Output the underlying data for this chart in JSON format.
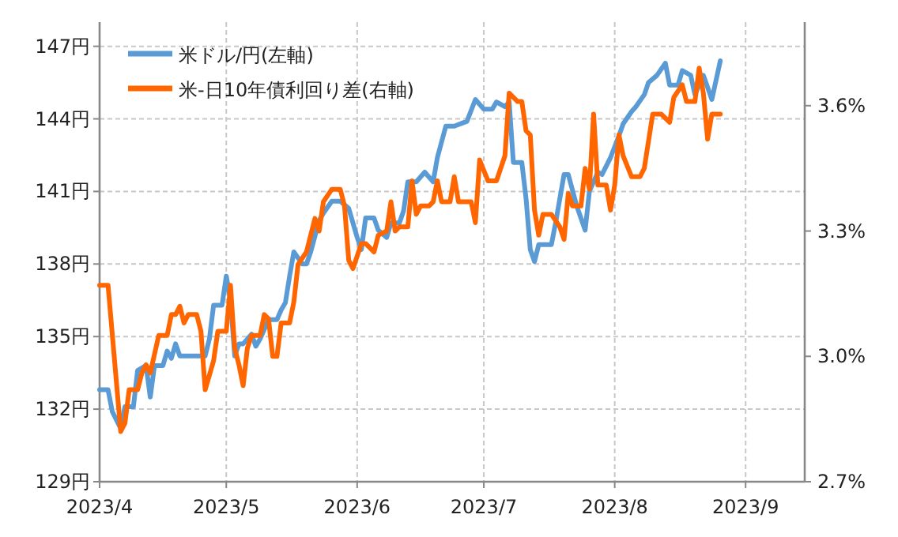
{
  "chart_data": {
    "type": "line",
    "legend": "top left",
    "grid": true,
    "xlim": [
      "2023-04-01",
      "2023-09-15"
    ],
    "xticks": [
      {
        "value": "2023-04-01",
        "label": "2023/4"
      },
      {
        "value": "2023-05-01",
        "label": "2023/5"
      },
      {
        "value": "2023-06-01",
        "label": "2023/6"
      },
      {
        "value": "2023-07-01",
        "label": "2023/7"
      },
      {
        "value": "2023-08-01",
        "label": "2023/8"
      },
      {
        "value": "2023-09-01",
        "label": "2023/9"
      }
    ],
    "ylim": [
      129,
      148
    ],
    "yticks": [
      {
        "value": 129,
        "label": "129円"
      },
      {
        "value": 132,
        "label": "132円"
      },
      {
        "value": 135,
        "label": "135円"
      },
      {
        "value": 138,
        "label": "138円"
      },
      {
        "value": 141,
        "label": "141円"
      },
      {
        "value": 144,
        "label": "144円"
      },
      {
        "value": 147,
        "label": "147円"
      }
    ],
    "y2lim": [
      2.7,
      3.8
    ],
    "y2ticks": [
      {
        "value": 2.7,
        "label": "2.7%"
      },
      {
        "value": 3.0,
        "label": "3.0%"
      },
      {
        "value": 3.3,
        "label": "3.3%"
      },
      {
        "value": 3.6,
        "label": "3.6%"
      }
    ],
    "series": [
      {
        "name": "米ドル/円(左軸)",
        "color": "#5b9bd5",
        "x": [
          "2023-04-01",
          "2023-04-03",
          "2023-04-04",
          "2023-04-06",
          "2023-04-07",
          "2023-04-09",
          "2023-04-10",
          "2023-04-12",
          "2023-04-13",
          "2023-04-14",
          "2023-04-16",
          "2023-04-17",
          "2023-04-18",
          "2023-04-19",
          "2023-04-20",
          "2023-04-22",
          "2023-04-26",
          "2023-04-27",
          "2023-04-28",
          "2023-04-30",
          "2023-05-01",
          "2023-05-02",
          "2023-05-03",
          "2023-05-04",
          "2023-05-05",
          "2023-05-07",
          "2023-05-08",
          "2023-05-09",
          "2023-05-11",
          "2023-05-13",
          "2023-05-14",
          "2023-05-15",
          "2023-05-16",
          "2023-05-17",
          "2023-05-19",
          "2023-05-20",
          "2023-05-21",
          "2023-05-23",
          "2023-05-24",
          "2023-05-26",
          "2023-05-28",
          "2023-05-30",
          "2023-06-01",
          "2023-06-02",
          "2023-06-03",
          "2023-06-05",
          "2023-06-06",
          "2023-06-08",
          "2023-06-09",
          "2023-06-11",
          "2023-06-12",
          "2023-06-13",
          "2023-06-15",
          "2023-06-17",
          "2023-06-19",
          "2023-06-20",
          "2023-06-22",
          "2023-06-24",
          "2023-06-27",
          "2023-06-29",
          "2023-07-01",
          "2023-07-03",
          "2023-07-04",
          "2023-07-06",
          "2023-07-07",
          "2023-07-08",
          "2023-07-10",
          "2023-07-11",
          "2023-07-12",
          "2023-07-13",
          "2023-07-14",
          "2023-07-17",
          "2023-07-18",
          "2023-07-20",
          "2023-07-21",
          "2023-07-23",
          "2023-07-25",
          "2023-07-26",
          "2023-07-28",
          "2023-07-29",
          "2023-07-31",
          "2023-08-02",
          "2023-08-03",
          "2023-08-05",
          "2023-08-06",
          "2023-08-08",
          "2023-08-09",
          "2023-08-11",
          "2023-08-13",
          "2023-08-14",
          "2023-08-16",
          "2023-08-17",
          "2023-08-19",
          "2023-08-20",
          "2023-08-22",
          "2023-08-24",
          "2023-08-26"
        ],
        "values": [
          132.8,
          132.8,
          131.9,
          131.2,
          132.1,
          132.1,
          133.6,
          133.8,
          132.5,
          133.8,
          133.8,
          134.4,
          134.1,
          134.7,
          134.2,
          134.2,
          134.2,
          134.9,
          136.3,
          136.3,
          137.5,
          136.5,
          134.2,
          134.7,
          134.7,
          135.1,
          134.6,
          134.9,
          135.7,
          135.7,
          136.1,
          136.4,
          137.5,
          138.5,
          138.0,
          138.0,
          138.5,
          139.8,
          140.1,
          140.6,
          140.6,
          140.3,
          139.1,
          138.6,
          139.9,
          139.9,
          139.4,
          139.1,
          139.7,
          139.7,
          140.2,
          141.4,
          141.4,
          141.8,
          141.4,
          142.4,
          143.7,
          143.7,
          143.9,
          144.8,
          144.4,
          144.4,
          144.7,
          144.5,
          144.7,
          142.2,
          142.2,
          140.7,
          138.6,
          138.1,
          138.8,
          138.8,
          139.7,
          141.7,
          141.7,
          140.4,
          139.4,
          141.0,
          141.8,
          141.7,
          142.4,
          143.3,
          143.8,
          144.3,
          144.5,
          145.0,
          145.5,
          145.8,
          146.3,
          145.4,
          145.4,
          146.0,
          145.8,
          145.0,
          145.8,
          144.8,
          146.4
        ]
      },
      {
        "name": "米-日10年債利回り差(右軸)",
        "color": "#ff6600",
        "axis": "y2",
        "x": [
          "2023-04-01",
          "2023-04-03",
          "2023-04-06",
          "2023-04-07",
          "2023-04-08",
          "2023-04-10",
          "2023-04-11",
          "2023-04-12",
          "2023-04-13",
          "2023-04-15",
          "2023-04-17",
          "2023-04-18",
          "2023-04-19",
          "2023-04-20",
          "2023-04-21",
          "2023-04-22",
          "2023-04-24",
          "2023-04-25",
          "2023-04-26",
          "2023-04-28",
          "2023-04-29",
          "2023-04-30",
          "2023-05-01",
          "2023-05-02",
          "2023-05-03",
          "2023-05-04",
          "2023-05-05",
          "2023-05-06",
          "2023-05-07",
          "2023-05-09",
          "2023-05-10",
          "2023-05-11",
          "2023-05-12",
          "2023-05-13",
          "2023-05-14",
          "2023-05-16",
          "2023-05-17",
          "2023-05-18",
          "2023-05-20",
          "2023-05-21",
          "2023-05-22",
          "2023-05-23",
          "2023-05-24",
          "2023-05-26",
          "2023-05-28",
          "2023-05-29",
          "2023-05-30",
          "2023-05-31",
          "2023-06-02",
          "2023-06-03",
          "2023-06-05",
          "2023-06-06",
          "2023-06-08",
          "2023-06-09",
          "2023-06-10",
          "2023-06-11",
          "2023-06-13",
          "2023-06-14",
          "2023-06-15",
          "2023-06-16",
          "2023-06-18",
          "2023-06-19",
          "2023-06-20",
          "2023-06-21",
          "2023-06-23",
          "2023-06-24",
          "2023-06-25",
          "2023-06-28",
          "2023-06-29",
          "2023-06-30",
          "2023-07-02",
          "2023-07-04",
          "2023-07-06",
          "2023-07-07",
          "2023-07-09",
          "2023-07-10",
          "2023-07-11",
          "2023-07-12",
          "2023-07-13",
          "2023-07-14",
          "2023-07-15",
          "2023-07-17",
          "2023-07-19",
          "2023-07-20",
          "2023-07-21",
          "2023-07-22",
          "2023-07-24",
          "2023-07-25",
          "2023-07-26",
          "2023-07-27",
          "2023-07-28",
          "2023-07-30",
          "2023-07-31",
          "2023-08-01",
          "2023-08-02",
          "2023-08-03",
          "2023-08-05",
          "2023-08-07",
          "2023-08-08",
          "2023-08-10",
          "2023-08-12",
          "2023-08-14",
          "2023-08-15",
          "2023-08-17",
          "2023-08-18",
          "2023-08-20",
          "2023-08-21",
          "2023-08-22",
          "2023-08-23",
          "2023-08-24",
          "2023-08-26"
        ],
        "values": [
          3.17,
          3.17,
          2.82,
          2.84,
          2.92,
          2.92,
          2.96,
          2.98,
          2.96,
          3.05,
          3.05,
          3.1,
          3.1,
          3.12,
          3.08,
          3.1,
          3.1,
          3.06,
          2.92,
          2.99,
          3.06,
          3.06,
          3.06,
          3.17,
          3.02,
          2.98,
          2.93,
          3.02,
          3.05,
          3.05,
          3.1,
          3.09,
          3.0,
          3.0,
          3.08,
          3.08,
          3.13,
          3.22,
          3.25,
          3.29,
          3.33,
          3.3,
          3.37,
          3.4,
          3.4,
          3.36,
          3.23,
          3.21,
          3.27,
          3.27,
          3.25,
          3.29,
          3.3,
          3.37,
          3.3,
          3.31,
          3.31,
          3.42,
          3.34,
          3.36,
          3.36,
          3.37,
          3.42,
          3.37,
          3.37,
          3.43,
          3.37,
          3.37,
          3.32,
          3.47,
          3.42,
          3.42,
          3.48,
          3.63,
          3.61,
          3.61,
          3.54,
          3.53,
          3.35,
          3.29,
          3.34,
          3.34,
          3.31,
          3.28,
          3.39,
          3.36,
          3.36,
          3.45,
          3.4,
          3.58,
          3.41,
          3.41,
          3.35,
          3.41,
          3.53,
          3.48,
          3.43,
          3.43,
          3.45,
          3.58,
          3.58,
          3.56,
          3.62,
          3.65,
          3.61,
          3.61,
          3.69,
          3.63,
          3.52,
          3.58,
          3.58
        ]
      }
    ]
  }
}
